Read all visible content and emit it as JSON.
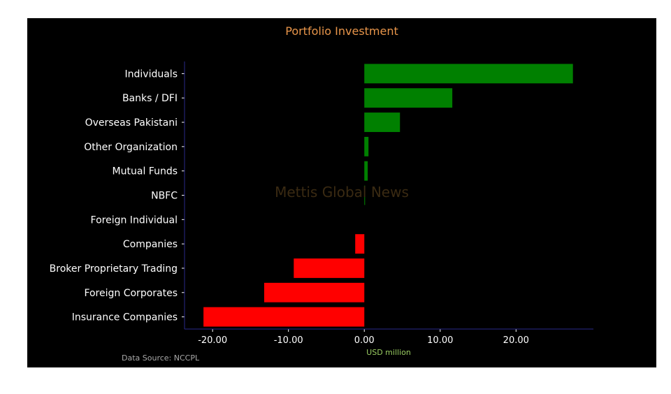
{
  "chart_data": {
    "type": "bar",
    "orientation": "horizontal",
    "title": "Portfolio Investment",
    "xlabel": "USD million",
    "ylabel": "",
    "watermark": "Mettis Global News",
    "source": "Data Source: NCCPL",
    "categories": [
      "Individuals",
      "Banks / DFI",
      "Overseas Pakistani",
      "Other Organization",
      "Mutual Funds",
      "NBFC",
      "Foreign Individual",
      "Companies",
      "Broker Proprietary Trading",
      "Foreign Corporates ",
      "Insurance Companies"
    ],
    "values": [
      27.5,
      11.6,
      4.7,
      0.55,
      0.45,
      0.1,
      0.0,
      -1.2,
      -9.3,
      -13.2,
      -21.2
    ],
    "xlim": [
      -23.7,
      30.2
    ],
    "xticks": [
      -20,
      -10,
      0,
      10,
      20
    ],
    "xtick_labels": [
      "-20.00",
      "-10.00",
      "0.00",
      "10.00",
      "20.00"
    ],
    "grid": false,
    "colors": {
      "positive": "#008000",
      "negative": "#ff0000",
      "title": "#e8954a",
      "xlabel": "#9acd62",
      "source": "#a9a9a9",
      "watermark": "#3a2a12",
      "axis": "#2a2a8a",
      "background": "#000000"
    }
  }
}
